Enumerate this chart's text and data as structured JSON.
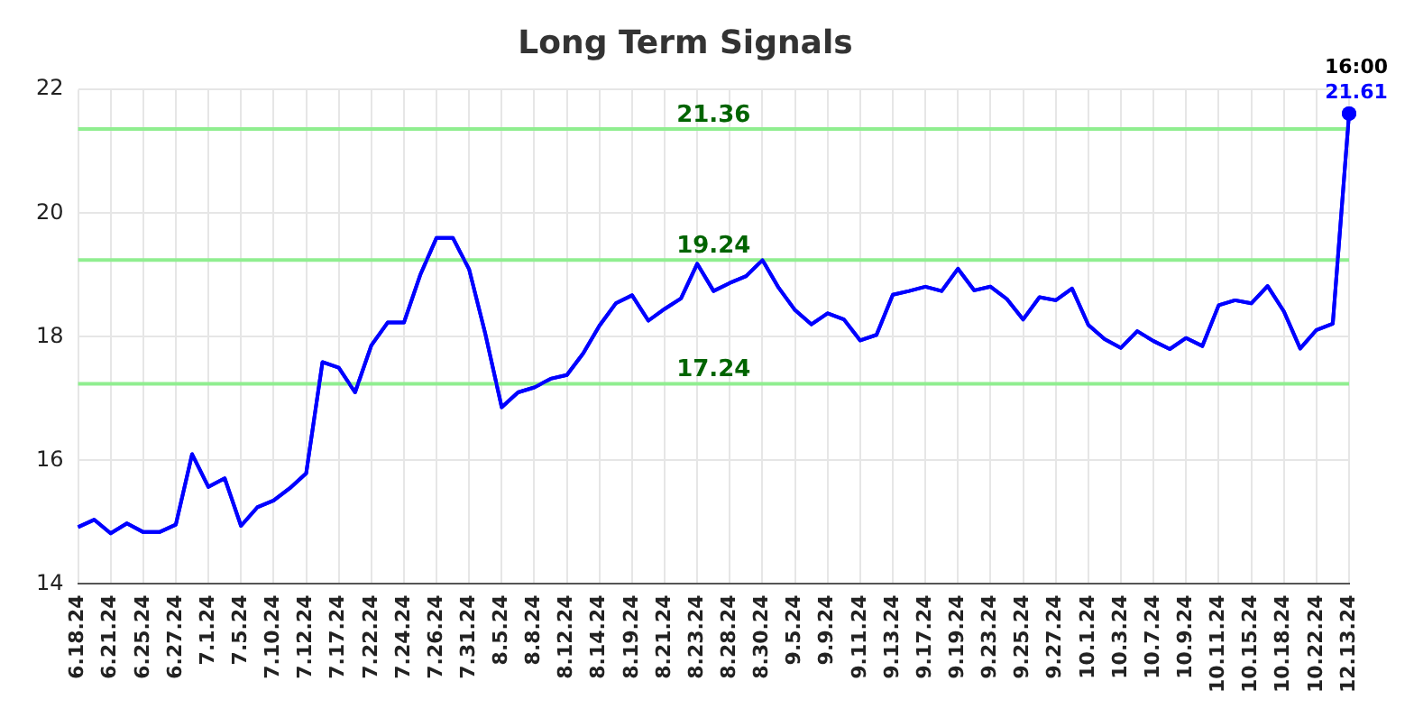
{
  "chart_data": {
    "type": "line",
    "title": "Long Term Signals",
    "categories": [
      "6.18.24",
      null,
      "6.21.24",
      null,
      "6.25.24",
      null,
      "6.27.24",
      null,
      "7.1.24",
      null,
      "7.5.24",
      null,
      "7.10.24",
      null,
      "7.12.24",
      null,
      "7.17.24",
      null,
      "7.22.24",
      null,
      "7.24.24",
      null,
      "7.26.24",
      null,
      "7.31.24",
      null,
      "8.5.24",
      null,
      "8.8.24",
      null,
      "8.12.24",
      null,
      "8.14.24",
      null,
      "8.19.24",
      null,
      "8.21.24",
      null,
      "8.23.24",
      null,
      "8.28.24",
      null,
      "8.30.24",
      null,
      "9.5.24",
      null,
      "9.9.24",
      null,
      "9.11.24",
      null,
      "9.13.24",
      null,
      "9.17.24",
      null,
      "9.19.24",
      null,
      "9.23.24",
      null,
      "9.25.24",
      null,
      "9.27.24",
      null,
      "10.1.24",
      null,
      "10.3.24",
      null,
      "10.7.24",
      null,
      "10.9.24",
      null,
      "10.11.24",
      null,
      "10.15.24",
      null,
      "10.18.24",
      null,
      "10.22.24",
      null,
      "12.13.24"
    ],
    "series": [
      {
        "color": "#0000ff",
        "marker": "none",
        "values": [
          14.92,
          15.04,
          14.82,
          14.98,
          14.84,
          14.84,
          14.96,
          16.1,
          15.57,
          15.71,
          14.94,
          15.24,
          15.35,
          15.55,
          15.79,
          17.59,
          17.5,
          17.1,
          17.86,
          18.23,
          18.23,
          19.0,
          19.6,
          19.6,
          19.09,
          18.04,
          16.86,
          17.1,
          17.18,
          17.32,
          17.38,
          17.73,
          18.18,
          18.54,
          18.67,
          18.26,
          18.45,
          18.62,
          19.18,
          18.74,
          18.87,
          18.98,
          19.24,
          18.79,
          18.43,
          18.2,
          18.38,
          18.28,
          17.94,
          18.03,
          18.68,
          18.74,
          18.81,
          18.74,
          19.1,
          18.75,
          18.81,
          18.61,
          18.28,
          18.64,
          18.59,
          18.78,
          18.19,
          17.96,
          17.82,
          18.09,
          17.93,
          17.8,
          17.98,
          17.85,
          18.51,
          18.59,
          18.54,
          18.82,
          18.41,
          17.81,
          18.11,
          18.21,
          21.61
        ]
      },
      {
        "type": "scatter",
        "color": "#0000ff",
        "marker": "circle",
        "x": [
          "12.13.24"
        ],
        "values": [
          21.61
        ],
        "value_labels": [
          "21.61"
        ]
      }
    ],
    "ylim": [
      14,
      22
    ],
    "yticks": [
      14,
      16,
      18,
      20,
      22
    ],
    "grid": true,
    "legend": false,
    "ref_lines": [
      {
        "axis": "y",
        "value": 21.36,
        "label": "21.36",
        "color": "#90ee90"
      },
      {
        "axis": "y",
        "value": 19.24,
        "label": "19.24",
        "color": "#90ee90"
      },
      {
        "axis": "y",
        "value": 17.24,
        "label": "17.24",
        "color": "#90ee90"
      }
    ],
    "annotations": [
      {
        "text": "16:00",
        "x": "12.13.24",
        "y": 21.61
      }
    ]
  }
}
